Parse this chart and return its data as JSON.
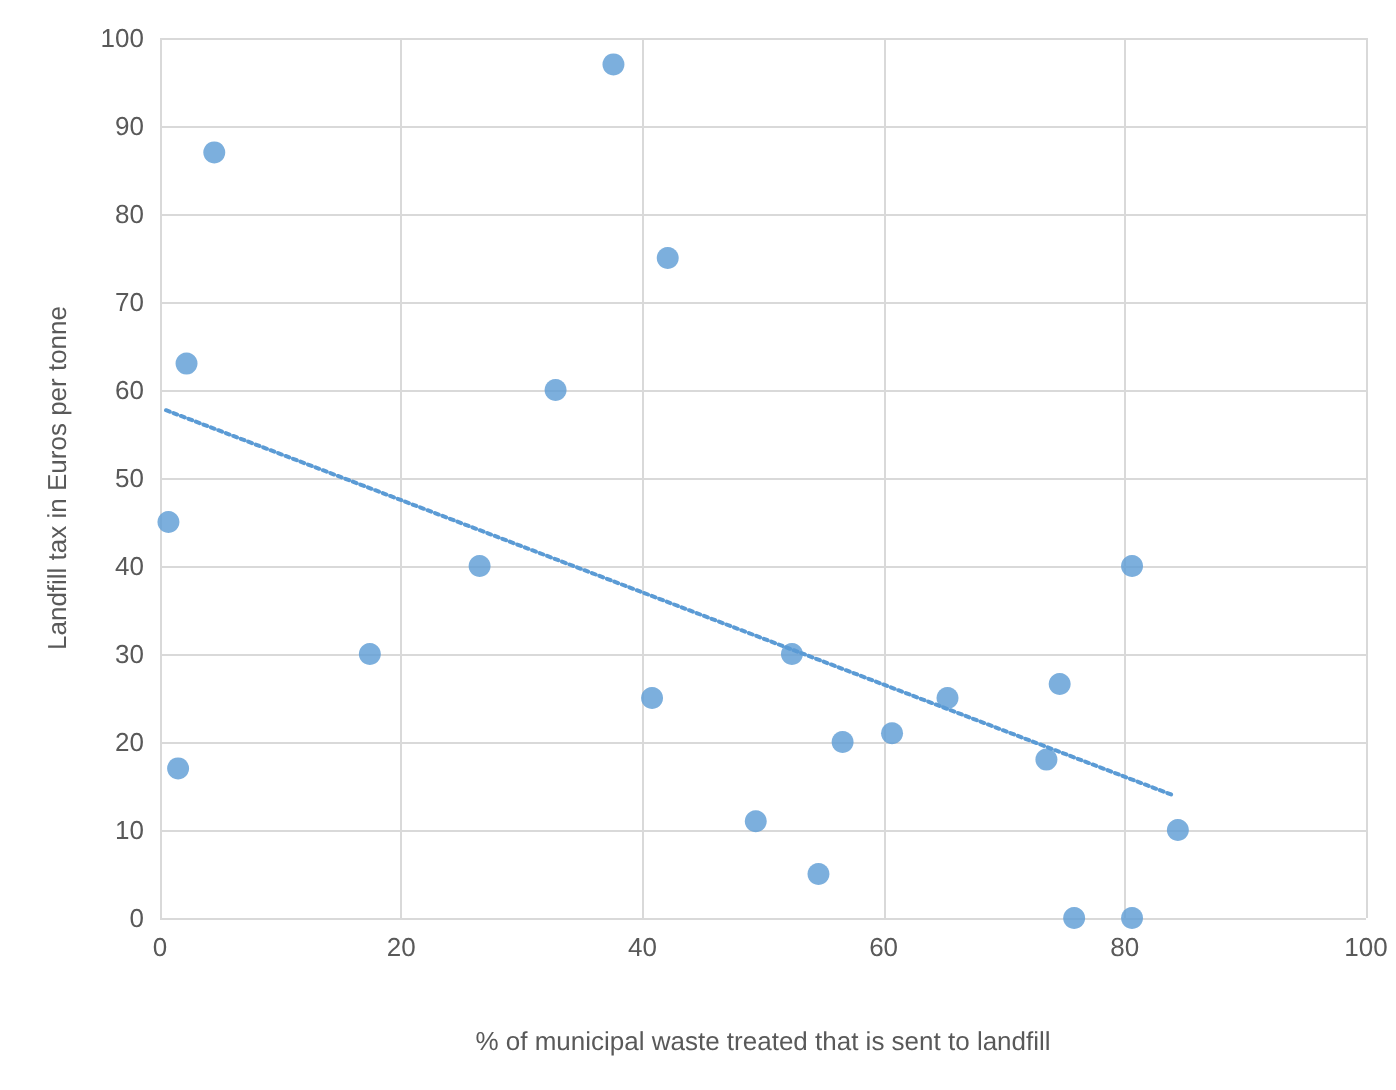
{
  "chart_data": {
    "type": "scatter",
    "xlabel": "% of municipal waste treated that is sent to landfill",
    "ylabel": "Landfill tax in Euros per tonne",
    "xlim": [
      0,
      100
    ],
    "xticks": [
      0,
      20,
      40,
      60,
      80,
      100
    ],
    "ylim": [
      0,
      100
    ],
    "yticks": [
      0,
      10,
      20,
      30,
      40,
      50,
      60,
      70,
      80,
      90,
      100
    ],
    "grid": true,
    "marker": "circle",
    "series": [
      {
        "color": "#5b9bd5",
        "x": [
          0.7,
          1.5,
          2.2,
          4.5,
          17.4,
          26.5,
          32.8,
          37.6,
          40.8,
          42.1,
          49.4,
          52.4,
          54.6,
          56.6,
          60.7,
          65.3,
          74.6,
          73.5,
          75.8,
          80.6,
          80.6,
          84.4
        ],
        "values": [
          45,
          17,
          63,
          87,
          30,
          40,
          60,
          97,
          25,
          75,
          11,
          30,
          5,
          20,
          21,
          25,
          26.6,
          18,
          0,
          40,
          0,
          10
        ]
      },
      {
        "type": "line",
        "marker": "none",
        "color": "#5b9bd5",
        "line_style": "dotted",
        "x": [
          0.5,
          84.1
        ],
        "values": [
          57.7,
          13.9
        ]
      }
    ]
  }
}
